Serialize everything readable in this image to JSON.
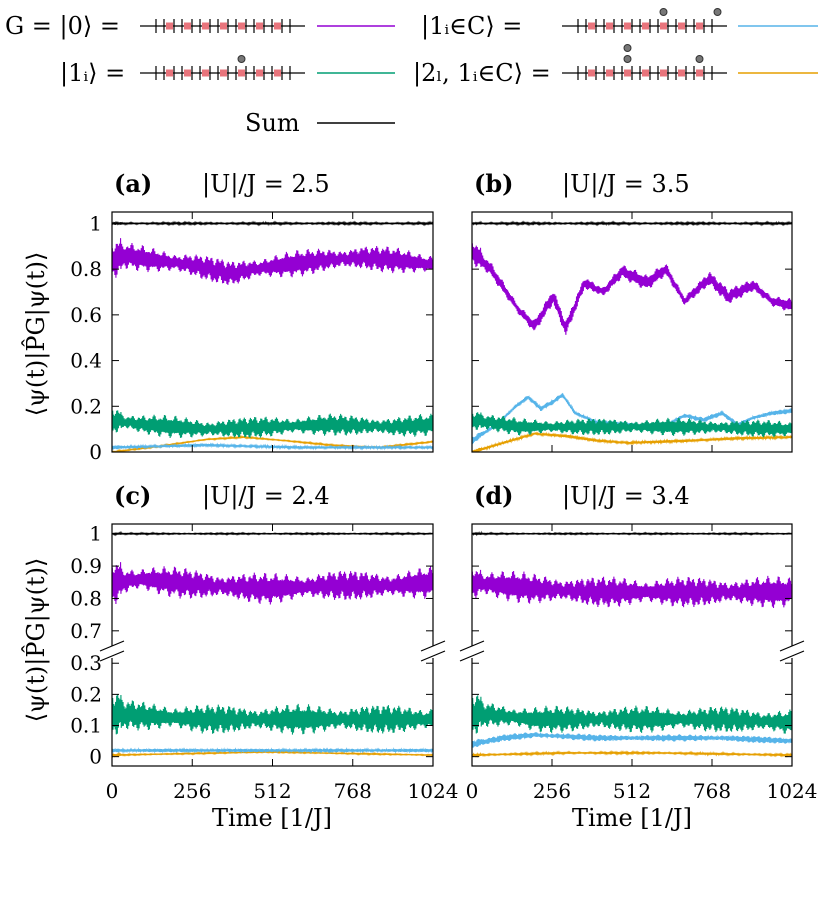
{
  "colors": {
    "ground": "#9400d3",
    "one_i": "#009e73",
    "one_in_c": "#56b4e9",
    "two_l": "#e69f00",
    "sum": "#000000"
  },
  "legend": [
    {
      "label": "G = |0⟩ =",
      "series": "ground",
      "glyph": "chain-empty-icon"
    },
    {
      "label": "|1ᵢ∈C⟩ =",
      "series": "one_in_c",
      "glyph": "chain-two-particles-icon"
    },
    {
      "label": "|1ᵢ⟩ =",
      "series": "one_i",
      "glyph": "chain-one-particle-icon"
    },
    {
      "label": "|2ₗ, 1ᵢ∈C⟩ =",
      "series": "two_l",
      "glyph": "chain-three-particles-icon"
    },
    {
      "label": "Sum",
      "series": "sum",
      "glyph": ""
    }
  ],
  "axes": {
    "ylabel": "⟨ψ(t)|P̂G|ψ(t)⟩",
    "xlabel": "Time [1/J]",
    "xticks": [
      "0",
      "256",
      "512",
      "768",
      "1024"
    ],
    "yticks_top": [
      "0",
      "0.2",
      "0.4",
      "0.6",
      "0.8",
      "1"
    ],
    "yticks_bottom_upper": [
      "0.7",
      "0.8",
      "0.9",
      "1"
    ],
    "yticks_bottom_lower": [
      "0",
      "0.1",
      "0.2",
      "0.3"
    ]
  },
  "chart_data": [
    {
      "panel": "(a)",
      "title": "|U|/J = 2.5",
      "type": "line",
      "xlim": [
        0,
        1024
      ],
      "ylim": [
        0,
        1.05
      ],
      "broken_axis": false,
      "series": [
        {
          "key": "sum",
          "mean": [
            [
              0,
              1.0
            ],
            [
              1024,
              1.0
            ]
          ],
          "amp": 0.004
        },
        {
          "key": "ground",
          "mean": [
            [
              0,
              0.84
            ],
            [
              40,
              0.86
            ],
            [
              130,
              0.84
            ],
            [
              250,
              0.82
            ],
            [
              380,
              0.78
            ],
            [
              450,
              0.8
            ],
            [
              560,
              0.82
            ],
            [
              680,
              0.84
            ],
            [
              800,
              0.85
            ],
            [
              900,
              0.84
            ],
            [
              1024,
              0.82
            ]
          ],
          "amp": 0.06
        },
        {
          "key": "one_i",
          "mean": [
            [
              0,
              0.14
            ],
            [
              100,
              0.12
            ],
            [
              300,
              0.1
            ],
            [
              500,
              0.11
            ],
            [
              700,
              0.12
            ],
            [
              900,
              0.11
            ],
            [
              1024,
              0.12
            ]
          ],
          "amp": 0.05
        },
        {
          "key": "two_l",
          "mean": [
            [
              0,
              0.0
            ],
            [
              150,
              0.025
            ],
            [
              300,
              0.055
            ],
            [
              420,
              0.065
            ],
            [
              550,
              0.05
            ],
            [
              700,
              0.03
            ],
            [
              850,
              0.02
            ],
            [
              1024,
              0.045
            ]
          ],
          "amp": 0.003
        },
        {
          "key": "one_in_c",
          "mean": [
            [
              0,
              0.02
            ],
            [
              300,
              0.03
            ],
            [
              600,
              0.02
            ],
            [
              1024,
              0.02
            ]
          ],
          "amp": 0.006
        }
      ]
    },
    {
      "panel": "(b)",
      "title": "|U|/J = 3.5",
      "type": "line",
      "xlim": [
        0,
        1024
      ],
      "ylim": [
        0,
        1.05
      ],
      "broken_axis": false,
      "series": [
        {
          "key": "sum",
          "mean": [
            [
              0,
              1.0
            ],
            [
              1024,
              1.0
            ]
          ],
          "amp": 0.004
        },
        {
          "key": "ground",
          "mean": [
            [
              0,
              0.88
            ],
            [
              60,
              0.8
            ],
            [
              150,
              0.62
            ],
            [
              200,
              0.55
            ],
            [
              260,
              0.68
            ],
            [
              300,
              0.54
            ],
            [
              360,
              0.74
            ],
            [
              420,
              0.7
            ],
            [
              480,
              0.79
            ],
            [
              560,
              0.74
            ],
            [
              620,
              0.8
            ],
            [
              680,
              0.66
            ],
            [
              760,
              0.76
            ],
            [
              820,
              0.68
            ],
            [
              900,
              0.73
            ],
            [
              960,
              0.66
            ],
            [
              1024,
              0.64
            ]
          ],
          "amp": 0.035
        },
        {
          "key": "one_in_c",
          "mean": [
            [
              0,
              0.05
            ],
            [
              80,
              0.12
            ],
            [
              140,
              0.2
            ],
            [
              180,
              0.24
            ],
            [
              220,
              0.19
            ],
            [
              260,
              0.22
            ],
            [
              290,
              0.25
            ],
            [
              330,
              0.17
            ],
            [
              400,
              0.13
            ],
            [
              500,
              0.12
            ],
            [
              600,
              0.1
            ],
            [
              680,
              0.16
            ],
            [
              740,
              0.14
            ],
            [
              800,
              0.17
            ],
            [
              850,
              0.12
            ],
            [
              900,
              0.15
            ],
            [
              960,
              0.17
            ],
            [
              1024,
              0.18
            ]
          ],
          "amp": 0.012
        },
        {
          "key": "one_i",
          "mean": [
            [
              0,
              0.14
            ],
            [
              150,
              0.11
            ],
            [
              400,
              0.11
            ],
            [
              700,
              0.11
            ],
            [
              1024,
              0.1
            ]
          ],
          "amp": 0.04
        },
        {
          "key": "two_l",
          "mean": [
            [
              0,
              0.0
            ],
            [
              100,
              0.04
            ],
            [
              200,
              0.08
            ],
            [
              300,
              0.07
            ],
            [
              400,
              0.05
            ],
            [
              500,
              0.04
            ],
            [
              700,
              0.05
            ],
            [
              850,
              0.06
            ],
            [
              1024,
              0.065
            ]
          ],
          "amp": 0.006
        }
      ]
    },
    {
      "panel": "(c)",
      "title": "|U|/J = 2.4",
      "type": "line",
      "xlim": [
        0,
        1024
      ],
      "broken_axis": true,
      "ylim_upper": [
        0.65,
        1.03
      ],
      "ylim_lower": [
        -0.03,
        0.32
      ],
      "series": [
        {
          "key": "sum",
          "mean": [
            [
              0,
              1.0
            ],
            [
              1024,
              1.0
            ]
          ],
          "amp": 0.002
        },
        {
          "key": "ground",
          "mean": [
            [
              0,
              0.85
            ],
            [
              100,
              0.86
            ],
            [
              300,
              0.84
            ],
            [
              500,
              0.83
            ],
            [
              700,
              0.84
            ],
            [
              900,
              0.84
            ],
            [
              1024,
              0.85
            ]
          ],
          "amp": 0.05
        },
        {
          "key": "one_i",
          "mean": [
            [
              0,
              0.14
            ],
            [
              100,
              0.13
            ],
            [
              300,
              0.12
            ],
            [
              500,
              0.12
            ],
            [
              700,
              0.12
            ],
            [
              900,
              0.12
            ],
            [
              1024,
              0.12
            ]
          ],
          "amp": 0.05
        },
        {
          "key": "one_in_c",
          "mean": [
            [
              0,
              0.02
            ],
            [
              1024,
              0.02
            ]
          ],
          "amp": 0.006
        },
        {
          "key": "two_l",
          "mean": [
            [
              0,
              0.005
            ],
            [
              500,
              0.015
            ],
            [
              1024,
              0.005
            ]
          ],
          "amp": 0.002
        }
      ]
    },
    {
      "panel": "(d)",
      "title": "|U|/J = 3.4",
      "type": "line",
      "xlim": [
        0,
        1024
      ],
      "broken_axis": true,
      "ylim_upper": [
        0.65,
        1.03
      ],
      "ylim_lower": [
        -0.03,
        0.32
      ],
      "series": [
        {
          "key": "sum",
          "mean": [
            [
              0,
              1.0
            ],
            [
              1024,
              1.0
            ]
          ],
          "amp": 0.002
        },
        {
          "key": "ground",
          "mean": [
            [
              0,
              0.85
            ],
            [
              200,
              0.83
            ],
            [
              400,
              0.82
            ],
            [
              600,
              0.82
            ],
            [
              800,
              0.82
            ],
            [
              1024,
              0.82
            ]
          ],
          "amp": 0.05
        },
        {
          "key": "one_i",
          "mean": [
            [
              0,
              0.14
            ],
            [
              200,
              0.12
            ],
            [
              500,
              0.12
            ],
            [
              800,
              0.12
            ],
            [
              1024,
              0.11
            ]
          ],
          "amp": 0.045
        },
        {
          "key": "one_in_c",
          "mean": [
            [
              0,
              0.04
            ],
            [
              100,
              0.06
            ],
            [
              200,
              0.07
            ],
            [
              400,
              0.06
            ],
            [
              600,
              0.06
            ],
            [
              800,
              0.06
            ],
            [
              1024,
              0.05
            ]
          ],
          "amp": 0.012
        },
        {
          "key": "two_l",
          "mean": [
            [
              0,
              0.005
            ],
            [
              300,
              0.012
            ],
            [
              600,
              0.012
            ],
            [
              1024,
              0.005
            ]
          ],
          "amp": 0.003
        }
      ]
    }
  ]
}
